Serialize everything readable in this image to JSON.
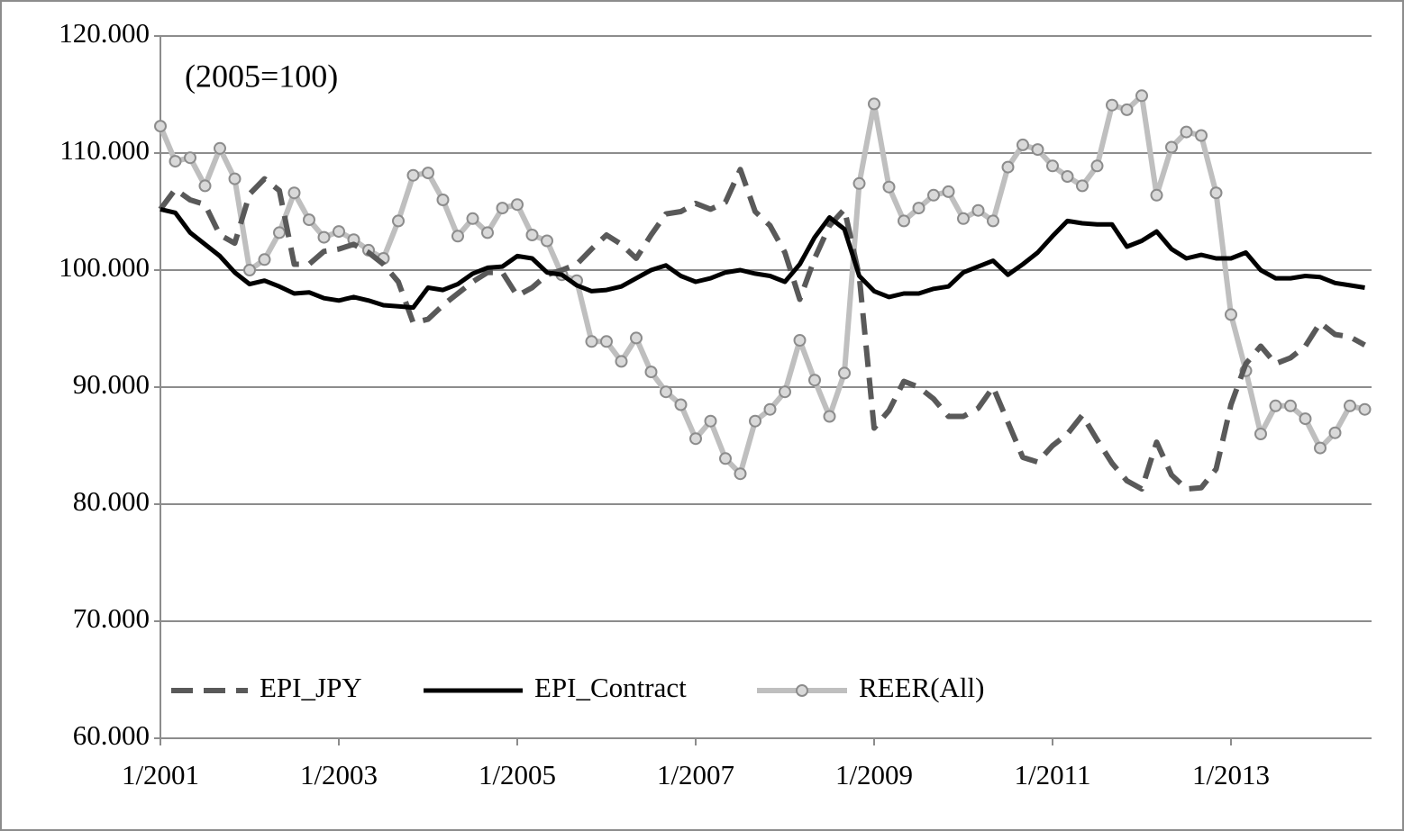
{
  "chart_data": {
    "type": "line",
    "annotation": "(2005=100)",
    "categories": [
      "1/2001",
      null,
      null,
      null,
      null,
      null,
      null,
      null,
      null,
      null,
      null,
      null,
      "1/2003",
      null,
      null,
      null,
      null,
      null,
      null,
      null,
      null,
      null,
      null,
      null,
      "1/2005",
      null,
      null,
      null,
      null,
      null,
      null,
      null,
      null,
      null,
      null,
      null,
      "1/2007",
      null,
      null,
      null,
      null,
      null,
      null,
      null,
      null,
      null,
      null,
      null,
      "1/2009",
      null,
      null,
      null,
      null,
      null,
      null,
      null,
      null,
      null,
      null,
      null,
      "1/2011",
      null,
      null,
      null,
      null,
      null,
      null,
      null,
      null,
      null,
      null,
      null,
      "1/2013",
      null,
      null,
      null,
      null,
      null,
      null,
      null,
      null,
      null
    ],
    "ylim": [
      60,
      120
    ],
    "yticks": [
      {
        "value": 60,
        "label": "60.000"
      },
      {
        "value": 70,
        "label": "70.000"
      },
      {
        "value": 80,
        "label": "80.000"
      },
      {
        "value": 90,
        "label": "90.000"
      },
      {
        "value": 100,
        "label": "100.000"
      },
      {
        "value": 110,
        "label": "110.000"
      },
      {
        "value": 120,
        "label": "120.000"
      }
    ],
    "grid": true,
    "legend": "bottom-left",
    "series": [
      {
        "name": "EPI_JPY",
        "color": "#595959",
        "style": "dashed",
        "values": [
          105.2,
          106.9,
          106.0,
          105.6,
          103.0,
          102.3,
          106.5,
          107.8,
          106.8,
          100.5,
          100.5,
          101.6,
          101.8,
          102.2,
          101.5,
          100.5,
          99.0,
          95.5,
          95.8,
          97.0,
          98.0,
          99.0,
          99.8,
          99.8,
          97.8,
          98.5,
          99.6,
          100.0,
          100.5,
          101.8,
          103.0,
          102.2,
          101.0,
          103.0,
          104.8,
          105.0,
          105.7,
          105.2,
          105.8,
          108.6,
          105.0,
          103.8,
          101.5,
          97.5,
          101.0,
          103.8,
          105.2,
          99.5,
          86.5,
          88.0,
          90.5,
          90.0,
          89.0,
          87.5,
          87.5,
          88.2,
          90.0,
          87.0,
          84.0,
          83.6,
          85.0,
          86.0,
          87.6,
          85.5,
          83.5,
          82.0,
          81.3,
          85.3,
          82.5,
          81.3,
          81.4,
          83.0,
          88.5,
          92.0,
          93.5,
          92.0,
          92.5,
          93.5,
          95.5,
          94.5,
          94.3,
          93.6
        ]
      },
      {
        "name": "EPI_Contract",
        "color": "#000000",
        "style": "solid",
        "values": [
          105.2,
          104.9,
          103.2,
          102.2,
          101.2,
          99.8,
          98.8,
          99.1,
          98.6,
          98.0,
          98.1,
          97.6,
          97.4,
          97.7,
          97.4,
          97.0,
          96.9,
          96.8,
          98.5,
          98.3,
          98.8,
          99.7,
          100.2,
          100.3,
          101.2,
          101.0,
          99.8,
          99.6,
          98.7,
          98.2,
          98.3,
          98.6,
          99.3,
          100.0,
          100.4,
          99.5,
          99.0,
          99.3,
          99.8,
          100.0,
          99.7,
          99.5,
          99.0,
          100.5,
          102.8,
          104.5,
          103.5,
          99.5,
          98.2,
          97.7,
          98.0,
          98.0,
          98.4,
          98.6,
          99.8,
          100.3,
          100.8,
          99.6,
          100.5,
          101.5,
          102.9,
          104.2,
          104.0,
          103.9,
          103.9,
          102.0,
          102.5,
          103.3,
          101.8,
          101.0,
          101.3,
          101.0,
          101.0,
          101.5,
          100.0,
          99.3,
          99.3,
          99.5,
          99.4,
          98.9,
          98.7,
          98.5
        ]
      },
      {
        "name": "REER(All)",
        "color": "#bfbfbf",
        "style": "marker",
        "values": [
          112.3,
          109.3,
          109.6,
          107.2,
          110.4,
          107.8,
          100.0,
          100.9,
          103.2,
          106.6,
          104.3,
          102.8,
          103.3,
          102.6,
          101.7,
          101.0,
          104.2,
          108.1,
          108.3,
          106.0,
          102.9,
          104.4,
          103.2,
          105.3,
          105.6,
          103.0,
          102.5,
          99.6,
          99.1,
          93.9,
          93.9,
          92.2,
          94.2,
          91.3,
          89.6,
          88.5,
          85.6,
          87.1,
          83.9,
          82.6,
          87.1,
          88.1,
          89.6,
          94.0,
          90.6,
          87.5,
          91.2,
          107.4,
          114.2,
          107.1,
          104.2,
          105.3,
          106.4,
          106.7,
          104.4,
          105.1,
          104.2,
          108.8,
          110.7,
          110.3,
          108.9,
          108.0,
          107.2,
          108.9,
          114.1,
          113.7,
          114.9,
          106.4,
          110.5,
          111.8,
          111.5,
          106.6,
          96.2,
          91.4,
          86.0,
          88.4,
          88.4,
          87.3,
          84.8,
          86.1,
          88.4,
          88.1
        ]
      }
    ]
  }
}
